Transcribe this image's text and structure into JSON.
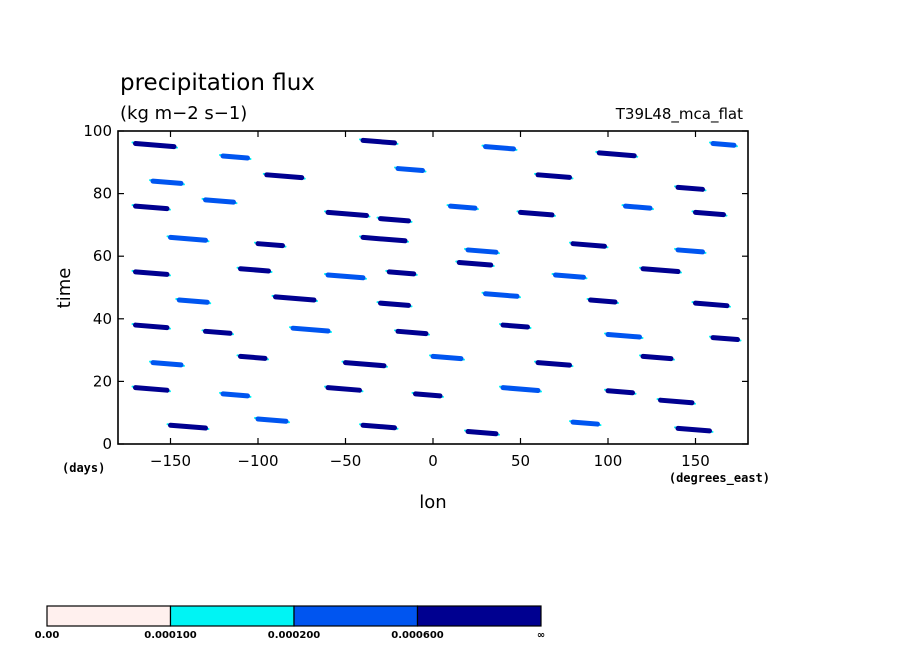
{
  "chart_data": {
    "type": "heatmap",
    "title": "precipitation flux",
    "units": "(kg m−2 s−1)",
    "run_label": "T39L48_mca_flat",
    "xlabel": "lon",
    "ylabel": "time",
    "x_units": "(degrees_east)",
    "y_units": "(days)",
    "xlim": [
      -180,
      180
    ],
    "ylim": [
      0,
      100
    ],
    "x_ticks": [
      -150,
      -100,
      -50,
      0,
      50,
      100,
      150
    ],
    "x_tick_labels": [
      "−150",
      "−100",
      "−50",
      "0",
      "50",
      "100",
      "150"
    ],
    "y_ticks": [
      0,
      20,
      40,
      60,
      80,
      100
    ],
    "y_tick_labels": [
      "0",
      "20",
      "40",
      "60",
      "80",
      "100"
    ],
    "grid": false,
    "levels": [
      "0.00",
      "0.000100",
      "0.000200",
      "0.000600",
      "∞"
    ],
    "level_colors": [
      "#fff0ee",
      "#00f4f4",
      "#0055f0",
      "#000090"
    ],
    "features": [
      {
        "lon": -170,
        "t": 96,
        "len": 22,
        "level": 3
      },
      {
        "lon": -120,
        "t": 92,
        "len": 14,
        "level": 2
      },
      {
        "lon": -40,
        "t": 97,
        "len": 18,
        "level": 3
      },
      {
        "lon": 30,
        "t": 95,
        "len": 16,
        "level": 2
      },
      {
        "lon": 95,
        "t": 93,
        "len": 20,
        "level": 3
      },
      {
        "lon": 160,
        "t": 96,
        "len": 12,
        "level": 2
      },
      {
        "lon": -160,
        "t": 84,
        "len": 16,
        "level": 2
      },
      {
        "lon": -95,
        "t": 86,
        "len": 20,
        "level": 3
      },
      {
        "lon": -20,
        "t": 88,
        "len": 14,
        "level": 2
      },
      {
        "lon": 60,
        "t": 86,
        "len": 18,
        "level": 3
      },
      {
        "lon": 140,
        "t": 82,
        "len": 14,
        "level": 3
      },
      {
        "lon": -170,
        "t": 76,
        "len": 18,
        "level": 3
      },
      {
        "lon": -130,
        "t": 78,
        "len": 16,
        "level": 2
      },
      {
        "lon": -60,
        "t": 74,
        "len": 22,
        "level": 3
      },
      {
        "lon": -30,
        "t": 72,
        "len": 16,
        "level": 3
      },
      {
        "lon": 10,
        "t": 76,
        "len": 14,
        "level": 2
      },
      {
        "lon": 50,
        "t": 74,
        "len": 18,
        "level": 3
      },
      {
        "lon": 110,
        "t": 76,
        "len": 14,
        "level": 2
      },
      {
        "lon": 150,
        "t": 74,
        "len": 16,
        "level": 3
      },
      {
        "lon": -150,
        "t": 66,
        "len": 20,
        "level": 2
      },
      {
        "lon": -100,
        "t": 64,
        "len": 14,
        "level": 3
      },
      {
        "lon": -40,
        "t": 66,
        "len": 24,
        "level": 3
      },
      {
        "lon": 20,
        "t": 62,
        "len": 16,
        "level": 2
      },
      {
        "lon": 80,
        "t": 64,
        "len": 18,
        "level": 3
      },
      {
        "lon": 140,
        "t": 62,
        "len": 14,
        "level": 2
      },
      {
        "lon": -170,
        "t": 55,
        "len": 18,
        "level": 3
      },
      {
        "lon": -110,
        "t": 56,
        "len": 16,
        "level": 3
      },
      {
        "lon": -60,
        "t": 54,
        "len": 20,
        "level": 2
      },
      {
        "lon": -25,
        "t": 55,
        "len": 14,
        "level": 3
      },
      {
        "lon": 15,
        "t": 58,
        "len": 18,
        "level": 3
      },
      {
        "lon": 70,
        "t": 54,
        "len": 16,
        "level": 2
      },
      {
        "lon": 120,
        "t": 56,
        "len": 20,
        "level": 3
      },
      {
        "lon": -145,
        "t": 46,
        "len": 16,
        "level": 2
      },
      {
        "lon": -90,
        "t": 47,
        "len": 22,
        "level": 3
      },
      {
        "lon": -30,
        "t": 45,
        "len": 16,
        "level": 3
      },
      {
        "lon": 30,
        "t": 48,
        "len": 18,
        "level": 2
      },
      {
        "lon": 90,
        "t": 46,
        "len": 14,
        "level": 3
      },
      {
        "lon": 150,
        "t": 45,
        "len": 18,
        "level": 3
      },
      {
        "lon": -170,
        "t": 38,
        "len": 18,
        "level": 3
      },
      {
        "lon": -130,
        "t": 36,
        "len": 14,
        "level": 3
      },
      {
        "lon": -80,
        "t": 37,
        "len": 20,
        "level": 2
      },
      {
        "lon": -20,
        "t": 36,
        "len": 16,
        "level": 3
      },
      {
        "lon": 40,
        "t": 38,
        "len": 14,
        "level": 3
      },
      {
        "lon": 100,
        "t": 35,
        "len": 18,
        "level": 2
      },
      {
        "lon": 160,
        "t": 34,
        "len": 14,
        "level": 3
      },
      {
        "lon": -160,
        "t": 26,
        "len": 16,
        "level": 2
      },
      {
        "lon": -110,
        "t": 28,
        "len": 14,
        "level": 3
      },
      {
        "lon": -50,
        "t": 26,
        "len": 22,
        "level": 3
      },
      {
        "lon": 0,
        "t": 28,
        "len": 16,
        "level": 2
      },
      {
        "lon": 60,
        "t": 26,
        "len": 18,
        "level": 3
      },
      {
        "lon": 120,
        "t": 28,
        "len": 16,
        "level": 3
      },
      {
        "lon": -170,
        "t": 18,
        "len": 18,
        "level": 3
      },
      {
        "lon": -120,
        "t": 16,
        "len": 14,
        "level": 2
      },
      {
        "lon": -60,
        "t": 18,
        "len": 18,
        "level": 3
      },
      {
        "lon": -10,
        "t": 16,
        "len": 14,
        "level": 3
      },
      {
        "lon": 40,
        "t": 18,
        "len": 20,
        "level": 2
      },
      {
        "lon": 100,
        "t": 17,
        "len": 14,
        "level": 3
      },
      {
        "lon": 130,
        "t": 14,
        "len": 18,
        "level": 3
      },
      {
        "lon": -150,
        "t": 6,
        "len": 20,
        "level": 3
      },
      {
        "lon": -100,
        "t": 8,
        "len": 16,
        "level": 2
      },
      {
        "lon": -40,
        "t": 6,
        "len": 18,
        "level": 3
      },
      {
        "lon": 20,
        "t": 4,
        "len": 16,
        "level": 3
      },
      {
        "lon": 80,
        "t": 7,
        "len": 14,
        "level": 2
      },
      {
        "lon": 140,
        "t": 5,
        "len": 18,
        "level": 3
      }
    ]
  }
}
